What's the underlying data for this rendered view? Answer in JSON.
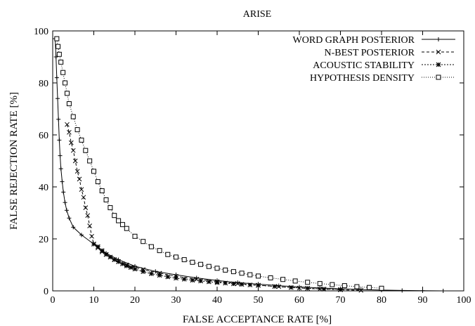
{
  "chart_data": {
    "type": "line",
    "title": "ARISE",
    "xlabel": "FALSE ACCEPTANCE RATE [%]",
    "ylabel": "FALSE REJECTION RATE [%]",
    "xlim": [
      0,
      100
    ],
    "ylim": [
      0,
      100
    ],
    "x_ticks": [
      "0",
      "10",
      "20",
      "30",
      "40",
      "50",
      "60",
      "70",
      "80",
      "90",
      "100"
    ],
    "y_ticks": [
      "0",
      "20",
      "40",
      "60",
      "80",
      "100"
    ],
    "grid": false,
    "legend_position": "top-right",
    "series": [
      {
        "name": "WORD GRAPH POSTERIOR",
        "marker": "plus",
        "dash": "",
        "x": [
          0.6,
          0.8,
          1.0,
          1.2,
          1.4,
          1.6,
          1.8,
          2.0,
          2.3,
          2.6,
          3.0,
          3.4,
          4.0,
          5.0,
          7.0,
          10.0,
          13.0,
          16.0,
          20.0,
          25.0,
          30.0,
          35.0,
          40.0,
          45.0,
          50.0,
          55.0,
          60.0,
          65.0,
          70.0,
          75.0,
          80.0,
          85.0,
          90.0,
          95.0
        ],
        "y": [
          97,
          90,
          82,
          74,
          66,
          58,
          52,
          47,
          42,
          38,
          34,
          31,
          28,
          24.5,
          21.5,
          18,
          14.5,
          12,
          9.5,
          7.5,
          6.2,
          5.0,
          4.0,
          3.2,
          2.6,
          2.0,
          1.5,
          1.1,
          0.8,
          0.5,
          0.3,
          0.15,
          0.05,
          0.0
        ]
      },
      {
        "name": "N-BEST POSTERIOR",
        "marker": "cross",
        "dash": "4,3",
        "x": [
          3.5,
          4.0,
          4.5,
          5.0,
          5.5,
          6.0,
          6.5,
          7.0,
          7.5,
          8.0,
          8.5,
          9.0,
          9.5,
          10.0,
          11.0,
          12.0,
          13.0,
          15.0,
          18.0,
          22.0,
          26.0,
          30.0,
          35.0,
          40.0,
          45.0,
          50.0,
          55.0,
          60.0,
          65.0,
          70.0,
          75.0
        ],
        "y": [
          64,
          61,
          57,
          54,
          50,
          46,
          43,
          39,
          36,
          32,
          29,
          25,
          21,
          18,
          16.5,
          15,
          14,
          12,
          10,
          8.2,
          6.8,
          5.6,
          4.5,
          3.6,
          2.8,
          2.2,
          1.6,
          1.1,
          0.7,
          0.4,
          0.2
        ]
      },
      {
        "name": "ACOUSTIC STABILITY",
        "marker": "star",
        "dash": "2,2",
        "x": [
          10.0,
          11.0,
          12.0,
          13.0,
          14.0,
          15.0,
          16.0,
          17.0,
          18.0,
          19.0,
          20.0,
          22.0,
          24.0,
          26.0,
          28.0,
          30.0,
          32.0,
          34.0,
          36.0,
          38.0,
          40.0,
          42.0,
          44.0,
          46.0,
          48.0,
          50.0,
          54.0,
          58.0,
          62.0,
          66.0,
          70.0
        ],
        "y": [
          18,
          17,
          15.5,
          14,
          13,
          12,
          11.2,
          10.4,
          9.6,
          9.0,
          8.4,
          7.4,
          6.6,
          6.0,
          5.4,
          4.9,
          4.5,
          4.1,
          3.8,
          3.5,
          3.2,
          3.0,
          2.7,
          2.5,
          2.3,
          2.1,
          1.7,
          1.3,
          1.0,
          0.7,
          0.5
        ]
      },
      {
        "name": "HYPOTHESIS DENSITY",
        "marker": "square",
        "dash": "1,2",
        "x": [
          1.0,
          1.3,
          1.6,
          2.0,
          2.5,
          3.0,
          3.5,
          4.0,
          5.0,
          6.0,
          7.0,
          8.0,
          9.0,
          10.0,
          11.0,
          12.0,
          13.0,
          14.0,
          15.0,
          16.0,
          17.0,
          18.0,
          20.0,
          22.0,
          24.0,
          26.0,
          28.0,
          30.0,
          32.0,
          34.0,
          36.0,
          38.0,
          40.0,
          42.0,
          44.0,
          46.0,
          48.0,
          50.0,
          53.0,
          56.0,
          59.0,
          62.0,
          65.0,
          68.0,
          71.0,
          74.0,
          77.0,
          80.0
        ],
        "y": [
          97,
          94,
          91,
          88,
          84,
          80,
          76,
          72,
          67,
          62,
          58,
          54,
          50,
          46,
          42,
          38.5,
          35,
          32,
          29,
          27,
          25.5,
          24,
          21,
          19,
          17,
          15.5,
          14,
          13,
          12,
          11,
          10.2,
          9.4,
          8.7,
          8.0,
          7.4,
          6.8,
          6.2,
          5.7,
          5.0,
          4.4,
          3.8,
          3.3,
          2.8,
          2.4,
          2.0,
          1.6,
          1.3,
          1.0
        ]
      }
    ]
  }
}
